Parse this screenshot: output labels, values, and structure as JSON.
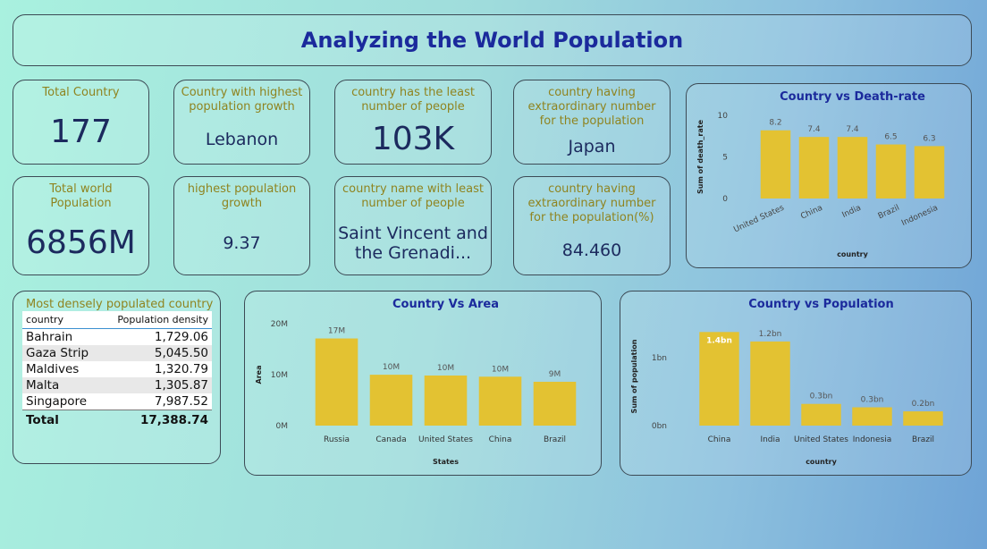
{
  "header": {
    "title": "Analyzing the World Population"
  },
  "cards": [
    {
      "label": "Total Country",
      "value": "177"
    },
    {
      "label": "Country with highest population growth",
      "value": "Lebanon"
    },
    {
      "label": "country has the least number of people",
      "value": "103K"
    },
    {
      "label": "country having extraordinary number for the population",
      "value": "Japan"
    },
    {
      "label": "Total world Population",
      "value": "6856M"
    },
    {
      "label": "highest population growth",
      "value": "9.37"
    },
    {
      "label": "country name with least number of people",
      "value": "Saint Vincent and the Grenadi..."
    },
    {
      "label": "country having extraordinary number for the population(%)",
      "value": "84.460"
    }
  ],
  "table": {
    "title": "Most densely populated country",
    "columns": [
      "country",
      "Population density"
    ],
    "rows": [
      [
        "Bahrain",
        "1,729.06"
      ],
      [
        "Gaza Strip",
        "5,045.50"
      ],
      [
        "Maldives",
        "1,320.79"
      ],
      [
        "Malta",
        "1,305.87"
      ],
      [
        "Singapore",
        "7,987.52"
      ]
    ],
    "total": [
      "Total",
      "17,388.74"
    ]
  },
  "chart_data": [
    {
      "type": "bar",
      "title": "Country vs Death-rate",
      "y_label": "Sum of death_rate",
      "x_label": "country",
      "categories": [
        "United States",
        "China",
        "India",
        "Brazil",
        "Indonesia"
      ],
      "values": [
        8.2,
        7.4,
        7.4,
        6.5,
        6.3
      ],
      "color": "#e3c232",
      "ylim": [
        0,
        10
      ],
      "yticks": [
        0,
        5,
        10
      ]
    },
    {
      "type": "bar",
      "title": "Country Vs Area",
      "y_label": "Area",
      "x_label": "States",
      "categories": [
        "Russia",
        "Canada",
        "United States",
        "China",
        "Brazil"
      ],
      "values": [
        17100000,
        9980000,
        9830000,
        9600000,
        8600000
      ],
      "value_labels": [
        "17M",
        "10M",
        "10M",
        "10M",
        "9M"
      ],
      "color": "#e3c232",
      "ylim": [
        0,
        20000000
      ],
      "yticks": [
        {
          "value": 0,
          "label": "0M"
        },
        {
          "value": 10000000,
          "label": "10M"
        },
        {
          "value": 20000000,
          "label": "20M"
        }
      ]
    },
    {
      "type": "bar",
      "title": "Country vs Population",
      "y_label": "Sum of population",
      "x_label": "country",
      "categories": [
        "China",
        "India",
        "United States",
        "Indonesia",
        "Brazil"
      ],
      "values": [
        1380000000,
        1240000000,
        320000000,
        270000000,
        210000000
      ],
      "value_labels": [
        "1.4bn",
        "1.2bn",
        "0.3bn",
        "0.3bn",
        "0.2bn"
      ],
      "color": "#e3c232",
      "ylim": [
        0,
        1450000000
      ],
      "yticks": [
        {
          "value": 0,
          "label": "0bn"
        },
        {
          "value": 1000000000,
          "label": "1bn"
        }
      ]
    }
  ]
}
